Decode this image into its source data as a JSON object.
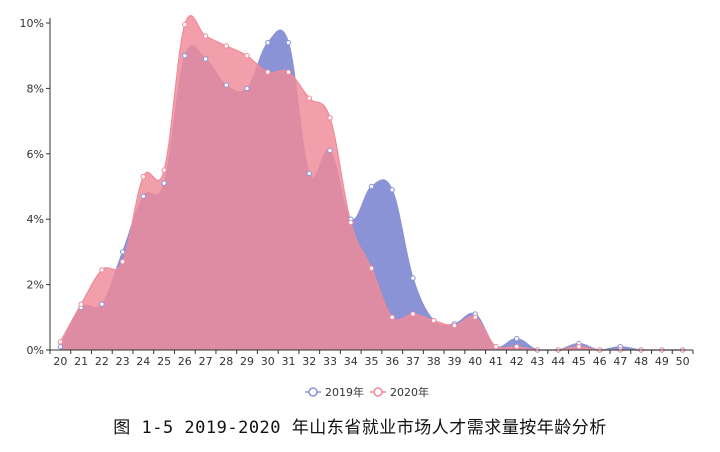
{
  "chart_data": {
    "type": "area",
    "title": "",
    "xlabel": "",
    "ylabel": "",
    "x": [
      "20",
      "21",
      "22",
      "23",
      "24",
      "25",
      "26",
      "27",
      "28",
      "29",
      "30",
      "31",
      "32",
      "33",
      "34",
      "35",
      "36",
      "37",
      "38",
      "39",
      "40",
      "41",
      "42",
      "43",
      "44",
      "45",
      "46",
      "47",
      "48",
      "49",
      "50"
    ],
    "y_ticks": [
      "0%",
      "2%",
      "4%",
      "6%",
      "8%",
      "10%"
    ],
    "ylim": [
      0,
      10
    ],
    "grid": false,
    "legend_position": "bottom-center",
    "series": [
      {
        "name": "2019年",
        "color": "#8a93d6",
        "values": [
          0.1,
          1.3,
          1.4,
          3.0,
          4.7,
          5.1,
          9.0,
          8.9,
          8.1,
          8.0,
          9.4,
          9.4,
          5.4,
          6.1,
          4.0,
          5.0,
          4.9,
          2.2,
          0.9,
          0.8,
          1.1,
          0.1,
          0.35,
          0.0,
          0.0,
          0.2,
          0.0,
          0.1,
          0.0,
          0.0,
          0.0
        ]
      },
      {
        "name": "2020年",
        "color": "#f08a98",
        "values": [
          0.25,
          1.4,
          2.45,
          2.7,
          5.3,
          5.5,
          9.95,
          9.6,
          9.3,
          9.0,
          8.5,
          8.5,
          7.7,
          7.1,
          3.9,
          2.5,
          1.0,
          1.1,
          0.9,
          0.75,
          1.0,
          0.1,
          0.1,
          0.0,
          0.0,
          0.1,
          0.0,
          0.0,
          0.0,
          0.0,
          0.0
        ]
      }
    ]
  },
  "caption": "图 1-5 2019-2020 年山东省就业市场人才需求量按年龄分析"
}
